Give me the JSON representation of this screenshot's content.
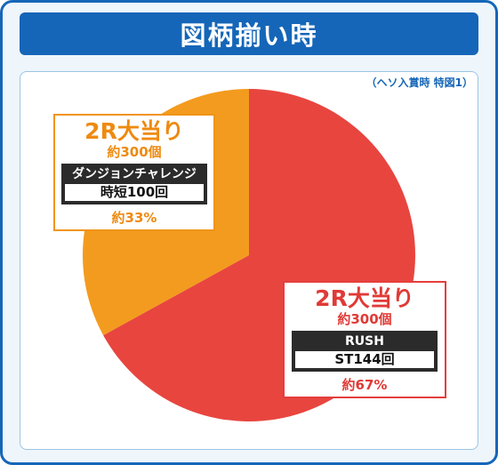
{
  "title": "図柄揃い時",
  "note": "（ヘソ入賞時 特図1）",
  "colors": {
    "orange": "#f39b1e",
    "red": "#e8453f",
    "border": "#1566b8"
  },
  "chart_data": {
    "type": "pie",
    "slices": [
      {
        "value": 67,
        "color": "#e8453f",
        "title": "2R大当り",
        "payout": "約300個",
        "mode": "RUSH",
        "detail": "ST144回",
        "percent_label": "約67%"
      },
      {
        "value": 33,
        "color": "#f39b1e",
        "title": "2R大当り",
        "payout": "約300個",
        "mode": "ダンジョンチャレンジ",
        "detail": "時短100回",
        "percent_label": "約33%"
      }
    ]
  }
}
